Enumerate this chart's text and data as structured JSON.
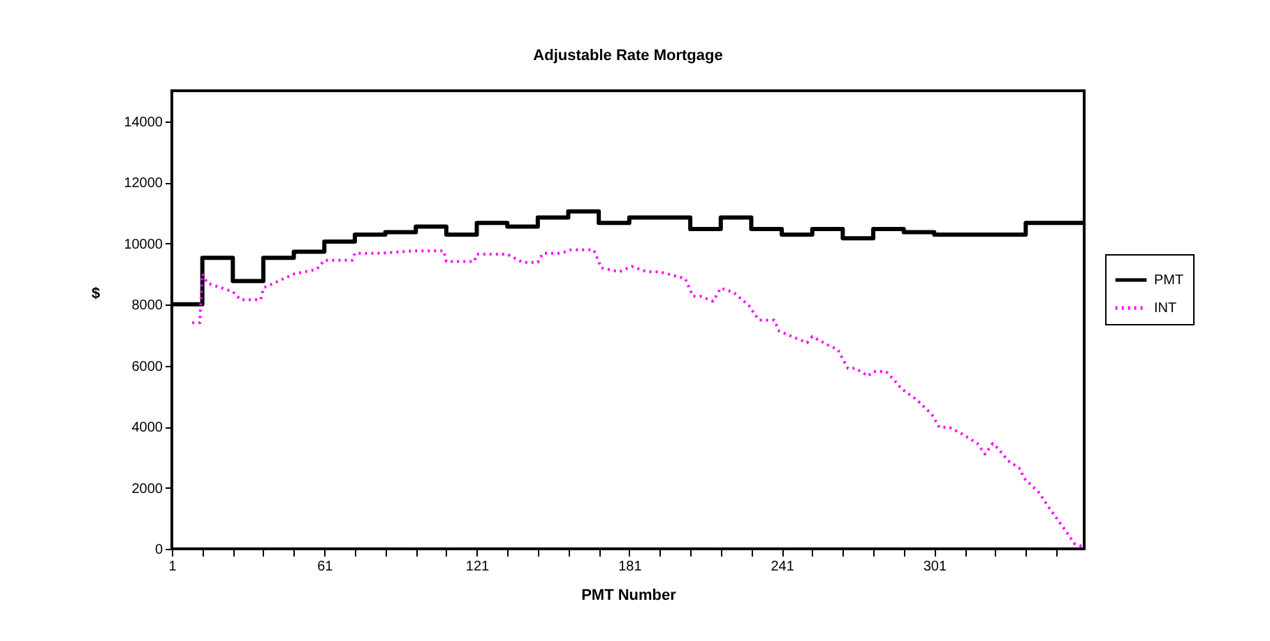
{
  "chart_data": {
    "type": "line",
    "title": "Adjustable Rate Mortgage",
    "xlabel": "PMT Number",
    "ylabel": "$",
    "xlim": [
      1,
      360
    ],
    "ylim": [
      0,
      15000
    ],
    "xticks": [
      1,
      {
        "value": 13,
        "label": null
      },
      {
        "value": 25,
        "label": null
      },
      {
        "value": 37,
        "label": null
      },
      {
        "value": 49,
        "label": null
      },
      61,
      {
        "value": 73,
        "label": null
      },
      {
        "value": 85,
        "label": null
      },
      {
        "value": 97,
        "label": null
      },
      {
        "value": 109,
        "label": null
      },
      121,
      {
        "value": 133,
        "label": null
      },
      {
        "value": 145,
        "label": null
      },
      {
        "value": 157,
        "label": null
      },
      {
        "value": 169,
        "label": null
      },
      181,
      {
        "value": 193,
        "label": null
      },
      {
        "value": 205,
        "label": null
      },
      {
        "value": 217,
        "label": null
      },
      {
        "value": 229,
        "label": null
      },
      241,
      {
        "value": 253,
        "label": null
      },
      {
        "value": 265,
        "label": null
      },
      {
        "value": 277,
        "label": null
      },
      {
        "value": 289,
        "label": null
      },
      301,
      {
        "value": 313,
        "label": null
      },
      {
        "value": 325,
        "label": null
      },
      {
        "value": 337,
        "label": null
      },
      {
        "value": 349,
        "label": null
      }
    ],
    "yticks": [
      0,
      2000,
      4000,
      6000,
      8000,
      10000,
      12000,
      14000
    ],
    "grid": false,
    "legend": "right",
    "series": [
      {
        "name": "PMT",
        "type": "step",
        "color": "#000000",
        "line_style": "solid",
        "x": [
          1,
          13,
          25,
          37,
          49,
          61,
          73,
          85,
          97,
          109,
          121,
          133,
          145,
          157,
          169,
          181,
          193,
          205,
          217,
          229,
          241,
          253,
          265,
          277,
          289,
          301,
          313,
          325,
          337,
          349,
          360
        ],
        "values": [
          8010,
          9530,
          8770,
          9530,
          9730,
          10060,
          10290,
          10370,
          10550,
          10290,
          10670,
          10550,
          10850,
          11050,
          10670,
          10850,
          10850,
          10470,
          10850,
          10470,
          10290,
          10470,
          10170,
          10470,
          10370,
          10290,
          10290,
          10290,
          10670,
          10670,
          10670
        ]
      },
      {
        "name": "INT",
        "type": "line",
        "color": "#ff00ff",
        "line_style": "dotted",
        "x": [
          9,
          12,
          13,
          15,
          25,
          28,
          36,
          37,
          49,
          58,
          61,
          72,
          73,
          84,
          96,
          102,
          108,
          109,
          120,
          121,
          128,
          133,
          139,
          145,
          147,
          154,
          158,
          167,
          170,
          177,
          182,
          188,
          193,
          203,
          206,
          209,
          214,
          217,
          222,
          228,
          232,
          238,
          240,
          246,
          251,
          253,
          260,
          263,
          267,
          270,
          275,
          277,
          282,
          285,
          288,
          294,
          300,
          303,
          307,
          312,
          318,
          321,
          324,
          326,
          330,
          335,
          336,
          342,
          347,
          353,
          356,
          360
        ],
        "values": [
          7400,
          7400,
          9000,
          8700,
          8420,
          8160,
          8160,
          8540,
          9000,
          9150,
          9450,
          9450,
          9680,
          9680,
          9760,
          9760,
          9760,
          9410,
          9410,
          9650,
          9650,
          9650,
          9380,
          9380,
          9680,
          9680,
          9790,
          9790,
          9200,
          9070,
          9250,
          9070,
          9070,
          8850,
          8270,
          8270,
          8110,
          8540,
          8400,
          7970,
          7490,
          7490,
          7130,
          6920,
          6750,
          6950,
          6640,
          6530,
          5910,
          5910,
          5660,
          5810,
          5810,
          5550,
          5250,
          4890,
          4410,
          3980,
          3980,
          3760,
          3450,
          3100,
          3450,
          3300,
          2890,
          2610,
          2340,
          1860,
          1250,
          560,
          180,
          50
        ]
      }
    ]
  }
}
